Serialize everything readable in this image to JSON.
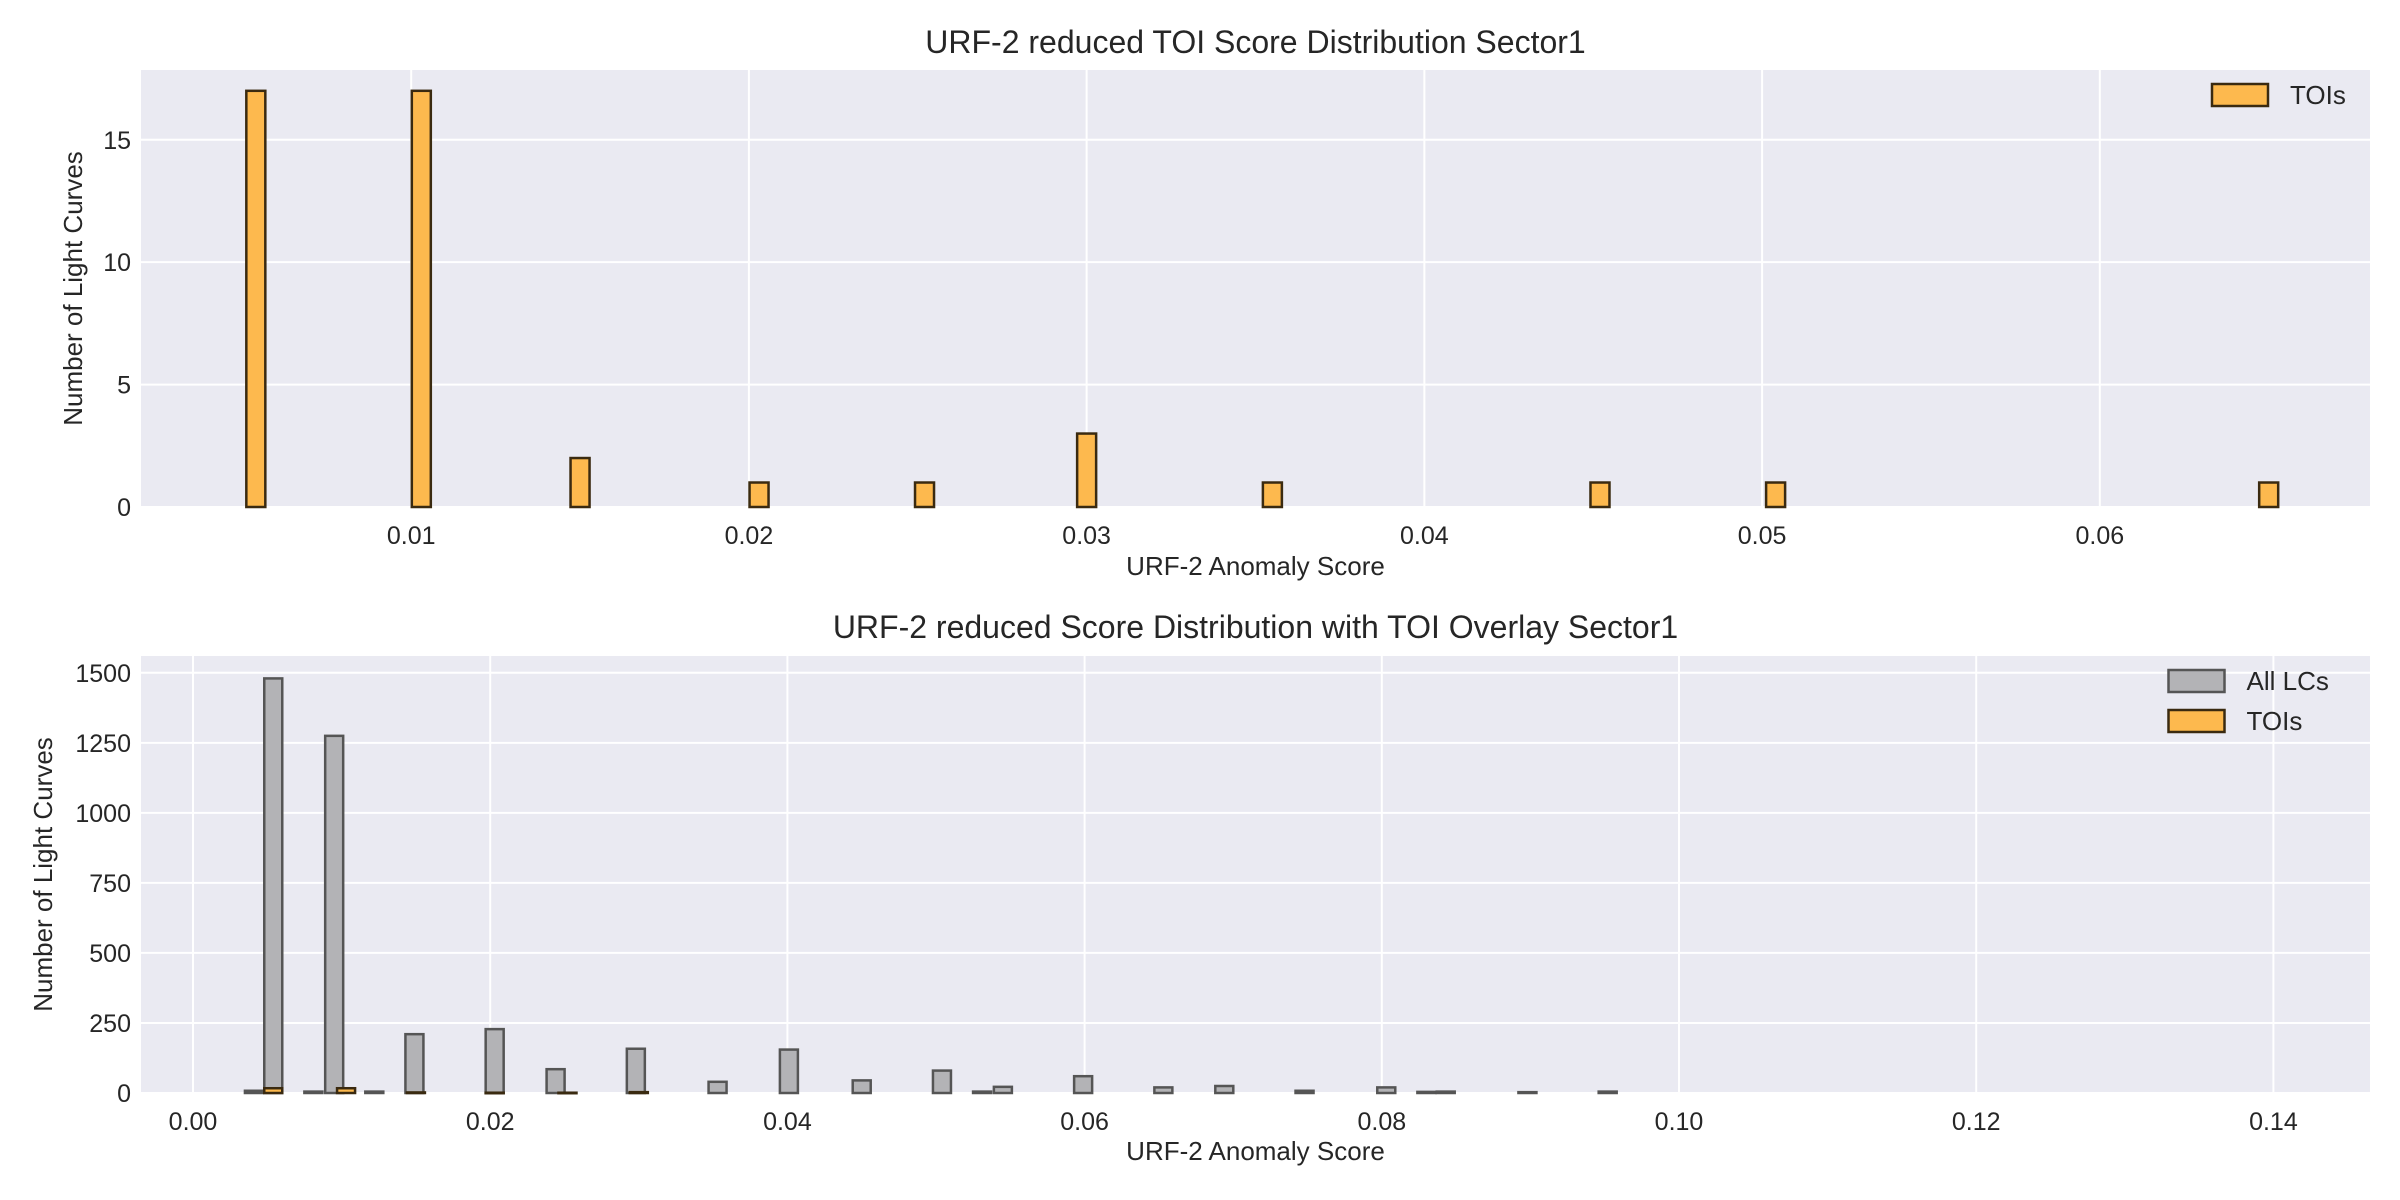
{
  "chart_data": [
    {
      "type": "bar",
      "title": "URF-2 reduced TOI Score Distribution Sector1",
      "xlabel": "URF-2 Anomaly Score",
      "ylabel": "Number of Light Curves",
      "xlim": [
        0.002,
        0.068
      ],
      "ylim": [
        0,
        17.85
      ],
      "xticks": [
        0.01,
        0.02,
        0.03,
        0.04,
        0.05,
        0.06
      ],
      "xtick_labels": [
        "0.01",
        "0.02",
        "0.03",
        "0.04",
        "0.05",
        "0.06"
      ],
      "yticks": [
        0,
        5,
        10,
        15
      ],
      "ytick_labels": [
        "0",
        "5",
        "10",
        "15"
      ],
      "grid": true,
      "legend": "top-right",
      "series": [
        {
          "name": "TOIs",
          "color": "#FDB94E",
          "x": [
            0.0054,
            0.0103,
            0.015,
            0.0203,
            0.0252,
            0.03,
            0.0355,
            0.0452,
            0.0504,
            0.065
          ],
          "values": [
            17,
            17,
            2,
            1,
            1,
            3,
            1,
            1,
            1,
            1
          ]
        }
      ]
    },
    {
      "type": "bar",
      "title": "URF-2 reduced Score Distribution with TOI Overlay Sector1",
      "xlabel": "URF-2 Anomaly Score",
      "ylabel": "Number of Light Curves",
      "xlim": [
        -0.0035,
        0.1465
      ],
      "ylim": [
        0,
        1560
      ],
      "xticks": [
        0.0,
        0.02,
        0.04,
        0.06,
        0.08,
        0.1,
        0.12,
        0.14
      ],
      "xtick_labels": [
        "0.00",
        "0.02",
        "0.04",
        "0.06",
        "0.08",
        "0.10",
        "0.12",
        "0.14"
      ],
      "yticks": [
        0,
        250,
        500,
        750,
        1000,
        1250,
        1500
      ],
      "ytick_labels": [
        "0",
        "250",
        "500",
        "750",
        "1000",
        "1250",
        "1500"
      ],
      "grid": true,
      "legend": "top-right",
      "series": [
        {
          "name": "All LCs",
          "color": "#B3B3B6",
          "x": [
            0.0041,
            0.0054,
            0.0081,
            0.0095,
            0.0122,
            0.0149,
            0.0203,
            0.0244,
            0.0298,
            0.0353,
            0.0401,
            0.045,
            0.0504,
            0.0531,
            0.0545,
            0.0599,
            0.0653,
            0.0694,
            0.0748,
            0.0803,
            0.083,
            0.0843,
            0.0898,
            0.0952
          ],
          "values": [
            8,
            1480,
            5,
            1275,
            5,
            210,
            228,
            85,
            158,
            40,
            155,
            45,
            80,
            5,
            22,
            60,
            20,
            25,
            8,
            20,
            4,
            5,
            3,
            5
          ]
        },
        {
          "name": "TOIs",
          "color": "#FDB94E",
          "x": [
            0.0054,
            0.0103,
            0.015,
            0.0203,
            0.0252,
            0.03
          ],
          "values": [
            17,
            17,
            2,
            1,
            1,
            3
          ]
        }
      ]
    }
  ]
}
